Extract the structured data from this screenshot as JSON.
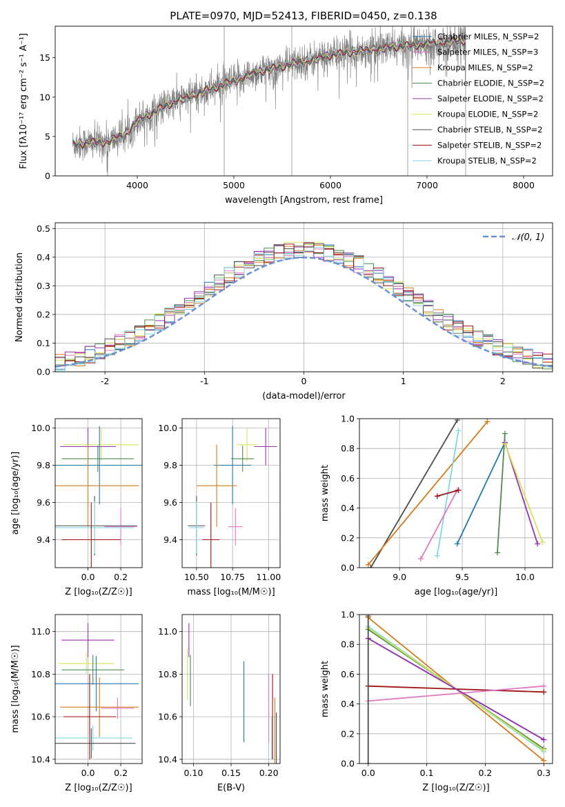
{
  "title": "PLATE=0970, MJD=52413, FIBERID=0450, z=0.138",
  "colors": {
    "chabrier_miles": "#1f77b4",
    "salpeter_miles": "#e377c2",
    "kroupa_miles": "#d97818",
    "chabrier_elodie": "#4e8a4e",
    "salpeter_elodie": "#9b30b0",
    "kroupa_elodie": "#d6e35a",
    "chabrier_stelib": "#4a4a4a",
    "salpeter_stelib": "#a01010",
    "kroupa_stelib": "#7ed6e0",
    "normal_curve": "#6a8fd6",
    "data_gray": "#808080",
    "grid": "#b0b0b0"
  },
  "chart_data": [
    {
      "id": "spectrum",
      "type": "line",
      "xlabel": "wavelength [Angstrom, rest frame]",
      "ylabel": "Flux [fλ10⁻¹⁷ erg cm⁻² s⁻¹ A⁻¹]",
      "xlim": [
        3150,
        8300
      ],
      "ylim": [
        0,
        19
      ],
      "xticks": [
        4000,
        5000,
        6000,
        7000,
        8000
      ],
      "yticks": [
        0,
        5,
        10,
        15
      ],
      "grid": false,
      "legend_placement": "top-right",
      "legend": [
        "Chabrier MILES, N_SSP=2",
        "Salpeter MILES, N_SSP=3",
        "Kroupa MILES, N_SSP=2",
        "Chabrier ELODIE, N_SSP=2",
        "Salpeter ELODIE, N_SSP=2",
        "Kroupa ELODIE, N_SSP=2",
        "Chabrier STELIB, N_SSP=2",
        "Salpeter STELIB, N_SSP=2",
        "Kroupa STELIB, N_SSP=2"
      ],
      "model_trend": {
        "x": [
          3330,
          3500,
          3700,
          3900,
          4000,
          4200,
          4400,
          4600,
          4800,
          5000,
          5200,
          5400,
          5600,
          5800,
          6000,
          6200,
          6400,
          6600,
          6800,
          7000,
          7200,
          7400
        ],
        "y": [
          4.0,
          4.2,
          4.3,
          5.5,
          7.0,
          8.3,
          9.5,
          10.3,
          11.2,
          12.0,
          13.0,
          13.6,
          14.2,
          14.7,
          15.3,
          15.7,
          16.0,
          16.3,
          16.5,
          16.8,
          17.0,
          17.2
        ]
      }
    },
    {
      "id": "residual_hist",
      "type": "line",
      "xlabel": "(data-model)/error",
      "ylabel": "Normed distribution",
      "xlim": [
        -2.5,
        2.5
      ],
      "ylim": [
        0,
        0.52
      ],
      "xticks": [
        -2,
        -1,
        0,
        1,
        2
      ],
      "yticks": [
        0.0,
        0.1,
        0.2,
        0.3,
        0.4,
        0.5
      ],
      "grid": true,
      "legend_placement": "top-right",
      "legend": [
        "𝒩(0, 1)"
      ],
      "bin_width": 0.1
    },
    {
      "id": "age_vs_Z",
      "type": "scatter",
      "xlabel": "Z [log₁₀(Z/Z☉)]",
      "ylabel": "age  [log₁₀(age/yr)]",
      "xlim": [
        -0.2,
        0.33
      ],
      "ylim": [
        9.25,
        10.05
      ],
      "xticks": [
        0.0,
        0.2
      ],
      "yticks": [
        9.4,
        9.6,
        9.8,
        10.0
      ],
      "grid": true,
      "points": [
        {
          "series": "kroupa_elodie",
          "x": 0.08,
          "y": 9.91,
          "xerr": 0.23,
          "yerr": 0.09
        },
        {
          "series": "salpeter_elodie",
          "x": 0.0,
          "y": 9.9,
          "xerr": 0.17,
          "yerr": 0.1
        },
        {
          "series": "chabrier_elodie",
          "x": 0.06,
          "y": 9.835,
          "xerr": 0.22,
          "yerr": 0.07
        },
        {
          "series": "chabrier_miles",
          "x": 0.07,
          "y": 9.8,
          "xerr": 0.28,
          "yerr": 0.21
        },
        {
          "series": "kroupa_miles",
          "x": 0.0,
          "y": 9.69,
          "xerr": 0.31,
          "yerr": 0.22
        },
        {
          "series": "salpeter_miles",
          "x": 0.2,
          "y": 9.47,
          "xerr": 0.1,
          "yerr": 0.1
        },
        {
          "series": "chabrier_stelib",
          "x": 0.04,
          "y": 9.475,
          "xerr": 0.26,
          "yerr": 0.16
        },
        {
          "series": "kroupa_stelib",
          "x": 0.04,
          "y": 9.465,
          "xerr": 0.24,
          "yerr": 0.14
        },
        {
          "series": "salpeter_stelib",
          "x": 0.02,
          "y": 9.4,
          "xerr": 0.18,
          "yerr": 0.2
        }
      ]
    },
    {
      "id": "age_vs_mass",
      "type": "scatter",
      "xlabel": "mass [log₁₀(M/M☉)]",
      "ylabel": "",
      "xlim": [
        10.4,
        11.08
      ],
      "ylim": [
        9.25,
        10.05
      ],
      "xticks": [
        10.5,
        10.75,
        11.0
      ],
      "xticklabels": [
        "10.50",
        "10.75",
        "11.00"
      ],
      "yticks": [
        9.4,
        9.6,
        9.8,
        10.0
      ],
      "grid": true,
      "points": [
        {
          "series": "salpeter_elodie",
          "x": 10.98,
          "y": 9.9,
          "xerr": 0.08,
          "yerr": 0.1
        },
        {
          "series": "kroupa_elodie",
          "x": 10.85,
          "y": 9.91,
          "xerr": 0.07,
          "yerr": 0.09
        },
        {
          "series": "chabrier_elodie",
          "x": 10.82,
          "y": 9.835,
          "xerr": 0.08,
          "yerr": 0.07
        },
        {
          "series": "chabrier_miles",
          "x": 10.75,
          "y": 9.8,
          "xerr": 0.13,
          "yerr": 0.21
        },
        {
          "series": "kroupa_miles",
          "x": 10.64,
          "y": 9.69,
          "xerr": 0.14,
          "yerr": 0.22
        },
        {
          "series": "salpeter_miles",
          "x": 10.77,
          "y": 9.47,
          "xerr": 0.05,
          "yerr": 0.1
        },
        {
          "series": "chabrier_stelib",
          "x": 10.5,
          "y": 9.475,
          "xerr": 0.06,
          "yerr": 0.16
        },
        {
          "series": "kroupa_stelib",
          "x": 10.5,
          "y": 9.465,
          "xerr": 0.05,
          "yerr": 0.14
        },
        {
          "series": "salpeter_stelib",
          "x": 10.6,
          "y": 9.4,
          "xerr": 0.06,
          "yerr": 0.2
        }
      ]
    },
    {
      "id": "weight_vs_age",
      "type": "line",
      "xlabel": "age  [log₁₀(age/yr)]",
      "ylabel": "mass weight",
      "xlim": [
        8.68,
        10.22
      ],
      "ylim": [
        0.0,
        1.0
      ],
      "xticks": [
        9.0,
        9.5,
        10.0
      ],
      "yticks": [
        0.0,
        0.2,
        0.4,
        0.6,
        0.8,
        1.0
      ],
      "grid": true,
      "series": [
        {
          "series": "chabrier_stelib",
          "points": [
            [
              8.77,
              0.0
            ],
            [
              9.46,
              0.99
            ]
          ]
        },
        {
          "series": "kroupa_miles",
          "points": [
            [
              8.75,
              0.02
            ],
            [
              9.7,
              0.98
            ]
          ]
        },
        {
          "series": "kroupa_stelib",
          "points": [
            [
              9.3,
              0.08
            ],
            [
              9.47,
              0.92
            ]
          ]
        },
        {
          "series": "salpeter_miles",
          "points": [
            [
              9.17,
              0.06
            ],
            [
              9.46,
              0.52
            ]
          ]
        },
        {
          "series": "salpeter_stelib",
          "points": [
            [
              9.3,
              0.48
            ],
            [
              9.47,
              0.52
            ]
          ]
        },
        {
          "series": "chabrier_miles",
          "points": [
            [
              9.46,
              0.16
            ],
            [
              9.84,
              0.84
            ]
          ]
        },
        {
          "series": "chabrier_elodie",
          "points": [
            [
              9.78,
              0.1
            ],
            [
              9.84,
              0.9
            ]
          ]
        },
        {
          "series": "salpeter_elodie",
          "points": [
            [
              9.84,
              0.84
            ],
            [
              10.1,
              0.16
            ]
          ]
        },
        {
          "series": "kroupa_elodie",
          "points": [
            [
              9.84,
              0.83
            ],
            [
              10.14,
              0.17
            ]
          ]
        }
      ]
    },
    {
      "id": "mass_vs_Z",
      "type": "scatter",
      "xlabel": "Z [log₁₀(Z/Z☉)]",
      "ylabel": "mass [log₁₀(M/M☉)]",
      "xlim": [
        -0.2,
        0.33
      ],
      "ylim": [
        10.38,
        11.08
      ],
      "xticks": [
        0.0,
        0.2
      ],
      "yticks": [
        10.4,
        10.6,
        10.8,
        11.0
      ],
      "grid": true,
      "points": [
        {
          "series": "salpeter_elodie",
          "x": 0.0,
          "y": 10.96,
          "xerr": 0.16,
          "yerr": 0.08
        },
        {
          "series": "kroupa_elodie",
          "x": -0.01,
          "y": 10.85,
          "xerr": 0.17,
          "yerr": 0.05
        },
        {
          "series": "chabrier_elodie",
          "x": 0.03,
          "y": 10.82,
          "xerr": 0.19,
          "yerr": 0.07
        },
        {
          "series": "chabrier_miles",
          "x": 0.05,
          "y": 10.755,
          "xerr": 0.26,
          "yerr": 0.13
        },
        {
          "series": "kroupa_miles",
          "x": 0.07,
          "y": 10.645,
          "xerr": 0.24,
          "yerr": 0.14
        },
        {
          "series": "salpeter_miles",
          "x": 0.18,
          "y": 10.64,
          "xerr": 0.1,
          "yerr": 0.05
        },
        {
          "series": "salpeter_stelib",
          "x": 0.01,
          "y": 10.6,
          "xerr": 0.16,
          "yerr": 0.2
        },
        {
          "series": "kroupa_stelib",
          "x": 0.03,
          "y": 10.5,
          "xerr": 0.24,
          "yerr": 0.06
        },
        {
          "series": "chabrier_stelib",
          "x": 0.02,
          "y": 10.475,
          "xerr": 0.27,
          "yerr": 0.07
        }
      ]
    },
    {
      "id": "mass_vs_ebv",
      "type": "scatter",
      "xlabel": "E(B-V)",
      "ylabel": "",
      "xlim": [
        0.085,
        0.215
      ],
      "ylim": [
        10.38,
        11.08
      ],
      "xticks": [
        0.1,
        0.15,
        0.2
      ],
      "xticklabels": [
        "0.10",
        "0.15",
        "0.20"
      ],
      "yticks": [
        10.4,
        10.6,
        10.8,
        11.0
      ],
      "grid": true,
      "points": [
        {
          "series": "salpeter_elodie",
          "x": 0.094,
          "y": 10.96,
          "yerr": 0.08
        },
        {
          "series": "kroupa_elodie",
          "x": 0.092,
          "y": 10.8,
          "yerr": 0.12
        },
        {
          "series": "chabrier_elodie",
          "x": 0.096,
          "y": 10.77,
          "yerr": 0.12
        },
        {
          "series": "chabrier_miles",
          "x": 0.167,
          "y": 10.67,
          "yerr": 0.19
        },
        {
          "series": "salpeter_miles",
          "x": 0.2,
          "y": 10.64,
          "yerr": 0.16
        },
        {
          "series": "salpeter_stelib",
          "x": 0.205,
          "y": 10.6,
          "yerr": 0.2
        },
        {
          "series": "kroupa_miles",
          "x": 0.208,
          "y": 10.53,
          "yerr": 0.16
        },
        {
          "series": "kroupa_stelib",
          "x": 0.204,
          "y": 10.5,
          "yerr": 0.1
        },
        {
          "series": "chabrier_stelib",
          "x": 0.21,
          "y": 10.5,
          "yerr": 0.12
        }
      ]
    },
    {
      "id": "weight_vs_Z",
      "type": "line",
      "xlabel": "Z [log₁₀(Z/Z☉)]",
      "ylabel": "mass weight",
      "xlim": [
        -0.015,
        0.315
      ],
      "ylim": [
        0.0,
        1.0
      ],
      "xticks": [
        0.0,
        0.1,
        0.2,
        0.3
      ],
      "yticks": [
        0.0,
        0.2,
        0.4,
        0.6,
        0.8,
        1.0
      ],
      "grid": true,
      "series": [
        {
          "series": "kroupa_miles",
          "points": [
            [
              0.0,
              0.98
            ],
            [
              0.3,
              0.02
            ]
          ]
        },
        {
          "series": "chabrier_elodie",
          "points": [
            [
              0.0,
              0.9
            ],
            [
              0.3,
              0.1
            ]
          ]
        },
        {
          "series": "kroupa_stelib",
          "points": [
            [
              0.0,
              0.92
            ],
            [
              0.3,
              0.08
            ]
          ]
        },
        {
          "series": "kroupa_elodie",
          "points": [
            [
              0.0,
              0.91
            ],
            [
              0.3,
              0.09
            ]
          ]
        },
        {
          "series": "chabrier_miles",
          "points": [
            [
              0.0,
              0.84
            ],
            [
              0.3,
              0.16
            ]
          ]
        },
        {
          "series": "salpeter_stelib",
          "points": [
            [
              0.0,
              0.52
            ],
            [
              0.3,
              0.48
            ]
          ]
        },
        {
          "series": "salpeter_miles",
          "points": [
            [
              0.0,
              0.42
            ],
            [
              0.3,
              0.52
            ]
          ]
        },
        {
          "series": "salpeter_elodie",
          "points": [
            [
              0.0,
              0.84
            ],
            [
              0.3,
              0.16
            ]
          ]
        },
        {
          "series": "chabrier_stelib",
          "points": [
            [
              0.0,
              0.0
            ],
            [
              0.0,
              0.99
            ]
          ]
        }
      ]
    }
  ]
}
